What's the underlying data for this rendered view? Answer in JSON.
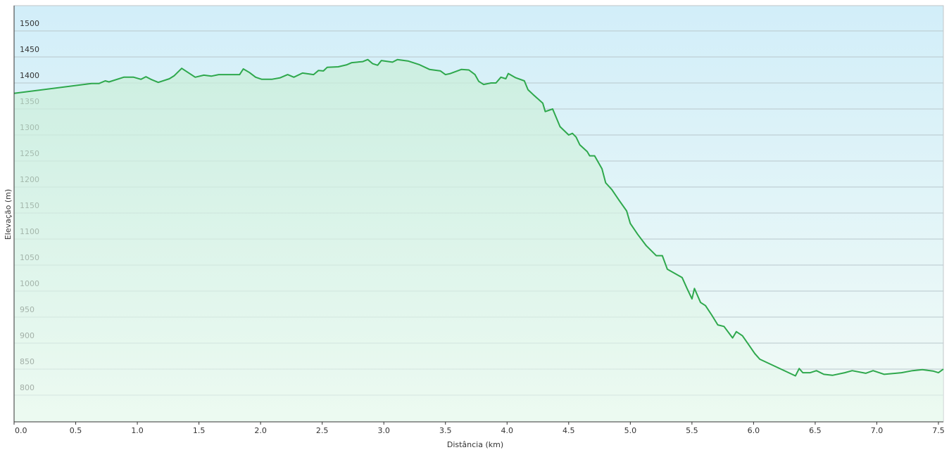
{
  "chart_data": {
    "type": "area",
    "x_label": "Distância  (km)",
    "y_label": "Elevação (m)",
    "color": "#2ea84c",
    "xlim": [
      0,
      7.54
    ],
    "ylim": [
      748.6,
      1548.6
    ],
    "grid": true,
    "yticks": [
      800,
      850,
      900,
      950,
      1000,
      1050,
      1100,
      1150,
      1200,
      1250,
      1300,
      1350,
      1400,
      1450,
      1500
    ],
    "xticks": [
      {
        "value": 0,
        "label": "0.0"
      },
      0.5,
      {
        "value": 1,
        "label": "1.0"
      },
      1.5,
      {
        "value": 2,
        "label": "2.0"
      },
      2.5,
      {
        "value": 3,
        "label": "3.0"
      },
      3.5,
      {
        "value": 4,
        "label": "4.0"
      },
      4.5,
      {
        "value": 5,
        "label": "5.0"
      },
      5.5,
      {
        "value": 6,
        "label": "6.0"
      },
      6.5,
      {
        "value": 7,
        "label": "7.0"
      },
      7.5
    ],
    "x": [
      0,
      0.63,
      0.69,
      0.74,
      0.77,
      0.89,
      0.97,
      1.03,
      1.07,
      1.11,
      1.17,
      1.26,
      1.3,
      1.36,
      1.47,
      1.54,
      1.6,
      1.66,
      1.83,
      1.86,
      1.91,
      1.96,
      2.01,
      2.09,
      2.16,
      2.22,
      2.27,
      2.34,
      2.43,
      2.47,
      2.51,
      2.54,
      2.63,
      2.7,
      2.74,
      2.83,
      2.87,
      2.91,
      2.95,
      2.98,
      3.07,
      3.11,
      3.2,
      3.29,
      3.37,
      3.46,
      3.5,
      3.54,
      3.63,
      3.69,
      3.74,
      3.77,
      3.81,
      3.87,
      3.91,
      3.95,
      3.99,
      4.01,
      4.07,
      4.14,
      4.17,
      4.21,
      4.29,
      4.31,
      4.37,
      4.43,
      4.5,
      4.53,
      4.56,
      4.59,
      4.65,
      4.67,
      4.71,
      4.77,
      4.8,
      4.85,
      4.91,
      4.97,
      5.0,
      5.06,
      5.13,
      5.21,
      5.26,
      5.3,
      5.42,
      5.46,
      5.5,
      5.52,
      5.57,
      5.61,
      5.66,
      5.71,
      5.76,
      5.83,
      5.86,
      5.91,
      5.96,
      6.01,
      6.05,
      6.34,
      6.37,
      6.4,
      6.46,
      6.51,
      6.57,
      6.64,
      6.74,
      6.8,
      6.91,
      6.97,
      7.06,
      7.2,
      7.29,
      7.37,
      7.46,
      7.5,
      7.54
    ],
    "values": [
      1380,
      1399,
      1399,
      1404,
      1402,
      1411,
      1411,
      1407,
      1412,
      1407,
      1401,
      1408,
      1414,
      1428,
      1411,
      1415,
      1413,
      1416,
      1416,
      1427,
      1420,
      1411,
      1407,
      1407,
      1410,
      1416,
      1411,
      1419,
      1416,
      1424,
      1423,
      1430,
      1431,
      1435,
      1439,
      1441,
      1445,
      1437,
      1434,
      1443,
      1440,
      1445,
      1442,
      1435,
      1426,
      1423,
      1416,
      1418,
      1426,
      1425,
      1416,
      1403,
      1397,
      1400,
      1400,
      1411,
      1408,
      1418,
      1410,
      1404,
      1387,
      1378,
      1361,
      1345,
      1350,
      1316,
      1300,
      1303,
      1296,
      1281,
      1268,
      1260,
      1260,
      1235,
      1208,
      1195,
      1174,
      1154,
      1130,
      1109,
      1087,
      1068,
      1068,
      1042,
      1026,
      1005,
      985,
      1005,
      978,
      972,
      954,
      935,
      932,
      910,
      922,
      914,
      897,
      880,
      869,
      837,
      851,
      843,
      843,
      847,
      840,
      838,
      843,
      847,
      842,
      847,
      840,
      843,
      847,
      849,
      846,
      843,
      850
    ]
  }
}
